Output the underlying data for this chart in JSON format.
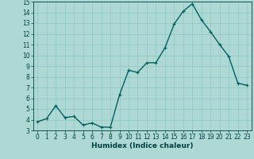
{
  "x": [
    0,
    1,
    2,
    3,
    4,
    5,
    6,
    7,
    8,
    9,
    10,
    11,
    12,
    13,
    14,
    15,
    16,
    17,
    18,
    19,
    20,
    21,
    22,
    23
  ],
  "y": [
    3.8,
    4.1,
    5.3,
    4.2,
    4.3,
    3.5,
    3.7,
    3.3,
    3.3,
    6.3,
    8.6,
    8.4,
    9.3,
    9.3,
    10.7,
    12.9,
    14.1,
    14.8,
    13.3,
    12.2,
    11.0,
    9.9,
    7.4,
    7.2
  ],
  "ylim": [
    3,
    15
  ],
  "xlim_min": -0.5,
  "xlim_max": 23.5,
  "yticks": [
    3,
    4,
    5,
    6,
    7,
    8,
    9,
    10,
    11,
    12,
    13,
    14,
    15
  ],
  "xticks": [
    0,
    1,
    2,
    3,
    4,
    5,
    6,
    7,
    8,
    9,
    10,
    11,
    12,
    13,
    14,
    15,
    16,
    17,
    18,
    19,
    20,
    21,
    22,
    23
  ],
  "xlabel": "Humidex (Indice chaleur)",
  "line_color": "#006060",
  "marker": "+",
  "bg_color": "#aed8d4",
  "grid_color": "#8fc8c4",
  "tick_color": "#004040",
  "label_color": "#004040",
  "line_width": 1.0,
  "marker_size": 3.5,
  "tick_fontsize": 5.5,
  "xlabel_fontsize": 6.5
}
